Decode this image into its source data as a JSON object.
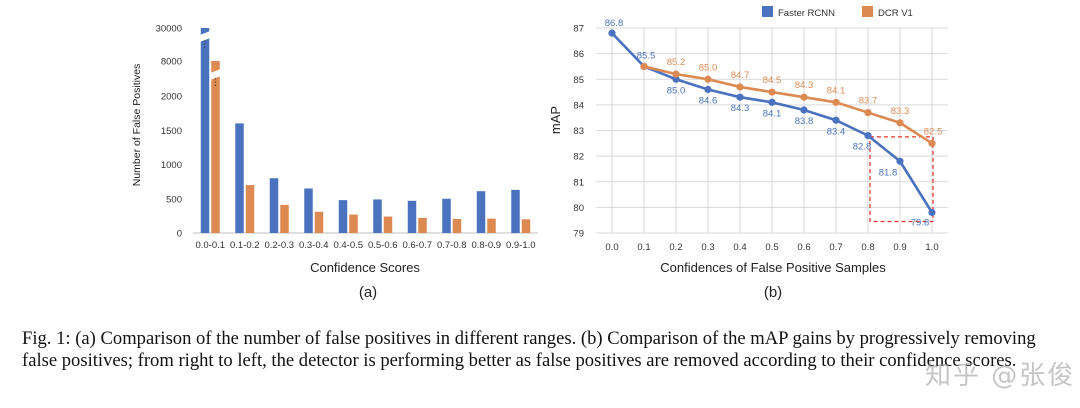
{
  "colors": {
    "blue": "#4a72bf",
    "orange": "#dc8a52",
    "grid": "#d9d9d9",
    "dashed_box": "#e0332b"
  },
  "chart_data": [
    {
      "type": "bar",
      "panel_label": "(a)",
      "xlabel": "Confidence Scores",
      "ylabel": "Number of False Positives",
      "ytick_labels": [
        "0",
        "500",
        "1000",
        "1500",
        "2000",
        "8000",
        "30000"
      ],
      "categories": [
        "0.0-0.1",
        "0.1-0.2",
        "0.2-0.3",
        "0.3-0.4",
        "0.4-0.5",
        "0.5-0.6",
        "0.6-0.7",
        "0.7-0.8",
        "0.8-0.9",
        "0.9-1.0"
      ],
      "series": [
        {
          "color": "#4a72bf",
          "values": [
            30000,
            1600,
            800,
            650,
            480,
            490,
            470,
            500,
            610,
            630
          ]
        },
        {
          "color": "#dc8a52",
          "values": [
            8000,
            700,
            410,
            310,
            270,
            240,
            220,
            205,
            210,
            200
          ]
        }
      ],
      "broken_axis": true,
      "grid": false
    },
    {
      "type": "line",
      "panel_label": "(b)",
      "xlabel": "Confidences of False Positive Samples",
      "ylabel": "mAP",
      "x": [
        0.0,
        0.1,
        0.2,
        0.3,
        0.4,
        0.5,
        0.6,
        0.7,
        0.8,
        0.9,
        1.0
      ],
      "xtick_labels": [
        "0.0",
        "0.1",
        "0.2",
        "0.3",
        "0.4",
        "0.5",
        "0.6",
        "0.7",
        "0.8",
        "0.9",
        "1.0"
      ],
      "ylim": [
        79,
        87
      ],
      "ytick_labels": [
        "79",
        "80",
        "81",
        "82",
        "83",
        "84",
        "85",
        "86",
        "87"
      ],
      "grid": true,
      "legend_position": "top-right",
      "series": [
        {
          "name": "Faster RCNN",
          "color": "#4a72bf",
          "values": [
            86.8,
            85.5,
            85.0,
            84.6,
            84.3,
            84.1,
            83.8,
            83.4,
            82.8,
            81.8,
            79.8
          ],
          "labels": [
            "86.8",
            "85.5",
            "85.0",
            "84.6",
            "84.3",
            "84.1",
            "83.8",
            "83.4",
            "82.8",
            "81.8",
            "79.8"
          ]
        },
        {
          "name": "DCR V1",
          "color": "#dc8a52",
          "x": [
            0.1,
            0.2,
            0.3,
            0.4,
            0.5,
            0.6,
            0.7,
            0.8,
            0.9,
            1.0
          ],
          "values": [
            85.5,
            85.2,
            85.0,
            84.7,
            84.5,
            84.3,
            84.1,
            83.7,
            83.3,
            82.5
          ],
          "labels": [
            "",
            "85.2",
            "85.0",
            "84.7",
            "84.5",
            "84.3",
            "84.1",
            "83.7",
            "83.3",
            "82.5"
          ]
        }
      ],
      "annotation": "dashed box around x 0.8 to 1.0"
    }
  ],
  "caption": "Fig. 1: (a) Comparison of the number of false positives in different ranges. (b) Comparison of the mAP gains by progressively removing false positives; from right to left, the detector is performing better as false positives are removed according to their confidence scores.",
  "watermark": "知乎 @张俊"
}
